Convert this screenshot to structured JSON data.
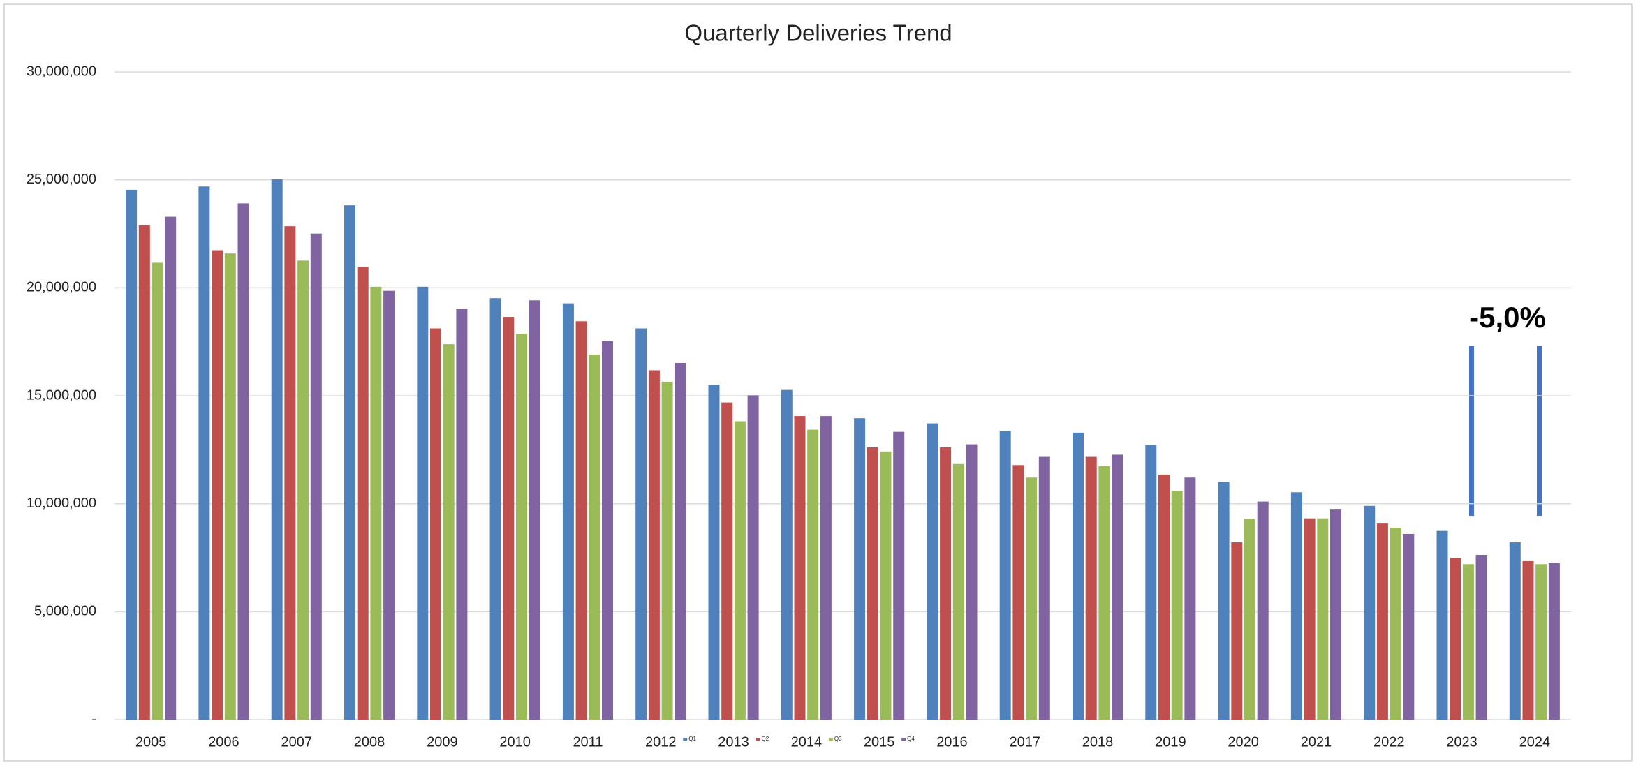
{
  "chart_data": {
    "type": "bar",
    "title": "Quarterly Deliveries Trend",
    "annotation": "-5,0%",
    "categories": [
      "2005",
      "2006",
      "2007",
      "2008",
      "2009",
      "2010",
      "2011",
      "2012",
      "2013",
      "2014",
      "2015",
      "2016",
      "2017",
      "2018",
      "2019",
      "2020",
      "2021",
      "2022",
      "2023",
      "2024"
    ],
    "series": [
      {
        "name": "Q1",
        "color": "#4f81bd",
        "values": [
          24540000,
          24690000,
          25020000,
          23820000,
          20050000,
          19520000,
          19280000,
          18120000,
          15510000,
          15270000,
          13960000,
          13720000,
          13380000,
          13290000,
          12710000,
          11010000,
          10530000,
          9900000,
          8740000,
          8210000
        ]
      },
      {
        "name": "Q2",
        "color": "#c0504d",
        "values": [
          22900000,
          21740000,
          22850000,
          20970000,
          18120000,
          18650000,
          18450000,
          16180000,
          14690000,
          14060000,
          12610000,
          12610000,
          11790000,
          12170000,
          11350000,
          8210000,
          9320000,
          9080000,
          7490000,
          7340000
        ]
      },
      {
        "name": "Q3",
        "color": "#9bbb59",
        "values": [
          21160000,
          21590000,
          21260000,
          20050000,
          17390000,
          17870000,
          16910000,
          15650000,
          13820000,
          13430000,
          12420000,
          11840000,
          11210000,
          11740000,
          10580000,
          9280000,
          9320000,
          8890000,
          7200000,
          7200000
        ]
      },
      {
        "name": "Q4",
        "color": "#8064a2",
        "values": [
          23290000,
          23910000,
          22510000,
          19860000,
          19030000,
          19420000,
          17540000,
          16520000,
          15020000,
          14060000,
          13330000,
          12750000,
          12170000,
          12270000,
          11210000,
          10100000,
          9760000,
          8600000,
          7630000,
          7250000
        ]
      }
    ],
    "ylim": [
      0,
      30000000
    ],
    "yticks": [
      {
        "value": 0,
        "label": "-"
      },
      {
        "value": 5000000,
        "label": "5,000,000"
      },
      {
        "value": 10000000,
        "label": "10,000,000"
      },
      {
        "value": 15000000,
        "label": "15,000,000"
      },
      {
        "value": 20000000,
        "label": "20,000,000"
      },
      {
        "value": 25000000,
        "label": "25,000,000"
      },
      {
        "value": 30000000,
        "label": "30,000,000"
      }
    ],
    "grid": true
  }
}
